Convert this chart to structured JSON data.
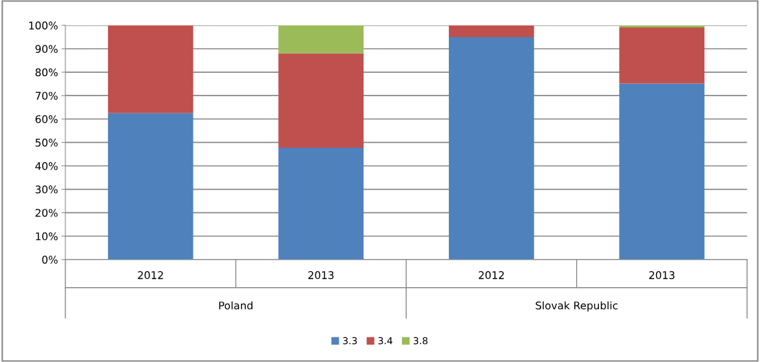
{
  "chart_data": {
    "type": "bar",
    "stacked": true,
    "categories": [
      "2012",
      "2013",
      "2012",
      "2013"
    ],
    "annotations": [
      "Poland",
      "Slovak Republic"
    ],
    "series": [
      {
        "name": "3.3",
        "color": "#4f81bd",
        "values": [
          62.5,
          47.8,
          95.0,
          75.2
        ]
      },
      {
        "name": "3.4",
        "color": "#c0504d",
        "values": [
          37.5,
          40.2,
          5.0,
          23.9
        ]
      },
      {
        "name": "3.8",
        "color": "#9bbb59",
        "values": [
          0,
          12.0,
          0,
          0.9
        ]
      }
    ],
    "ylim": [
      0,
      100
    ],
    "yticks": [
      {
        "value": 0,
        "label": "0%"
      },
      {
        "value": 10,
        "label": "10%"
      },
      {
        "value": 20,
        "label": "20%"
      },
      {
        "value": 30,
        "label": "30%"
      },
      {
        "value": 40,
        "label": "40%"
      },
      {
        "value": 50,
        "label": "50%"
      },
      {
        "value": 60,
        "label": "60%"
      },
      {
        "value": 70,
        "label": "70%"
      },
      {
        "value": 80,
        "label": "80%"
      },
      {
        "value": 90,
        "label": "90%"
      },
      {
        "value": 100,
        "label": "100%"
      }
    ],
    "grid": "y",
    "legend": "bottom"
  }
}
